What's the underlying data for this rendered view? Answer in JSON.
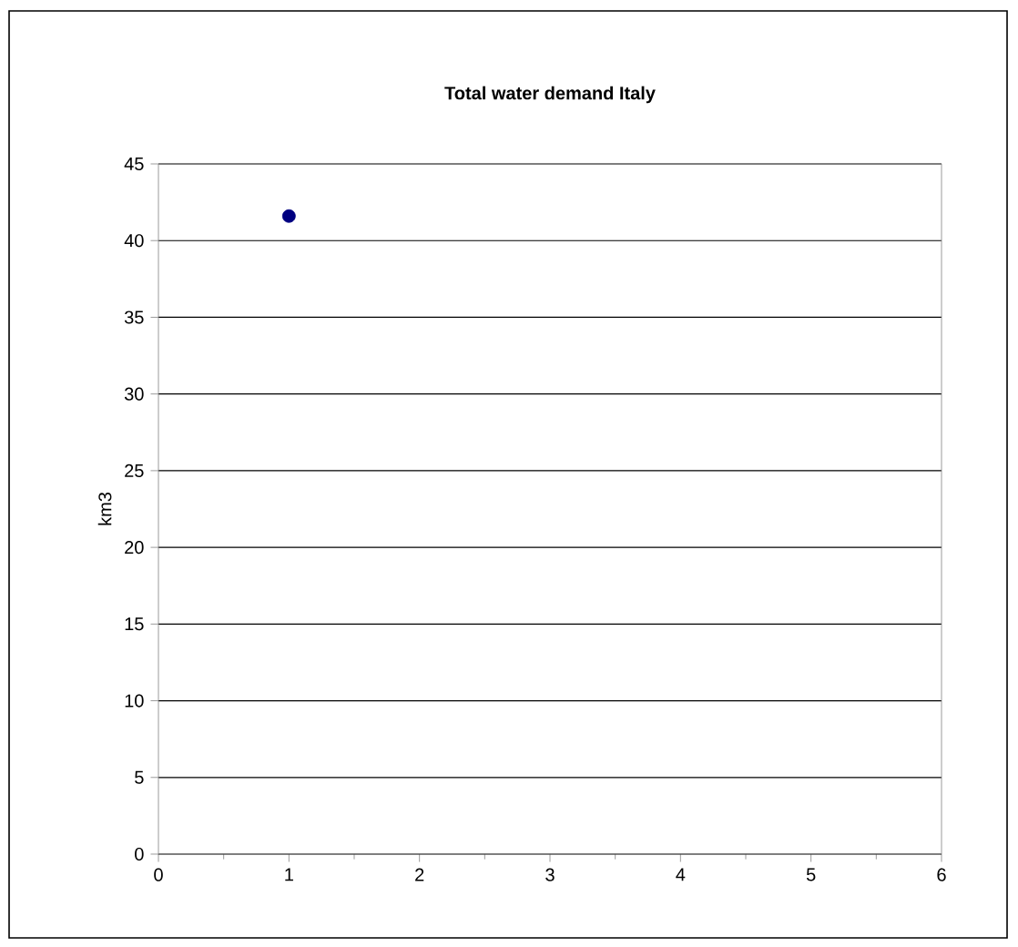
{
  "chart_data": {
    "type": "scatter",
    "title": "Total water demand  Italy",
    "ylabel": "km3",
    "x": [
      1
    ],
    "values": [
      41.6
    ],
    "color": "#000080",
    "xlim": [
      0,
      6
    ],
    "xticks": [
      0,
      1,
      2,
      3,
      4,
      5,
      6
    ],
    "ylim": [
      0,
      45
    ],
    "yticks": [
      0,
      5,
      10,
      15,
      20,
      25,
      30,
      35,
      40,
      45
    ],
    "grid": "y"
  }
}
